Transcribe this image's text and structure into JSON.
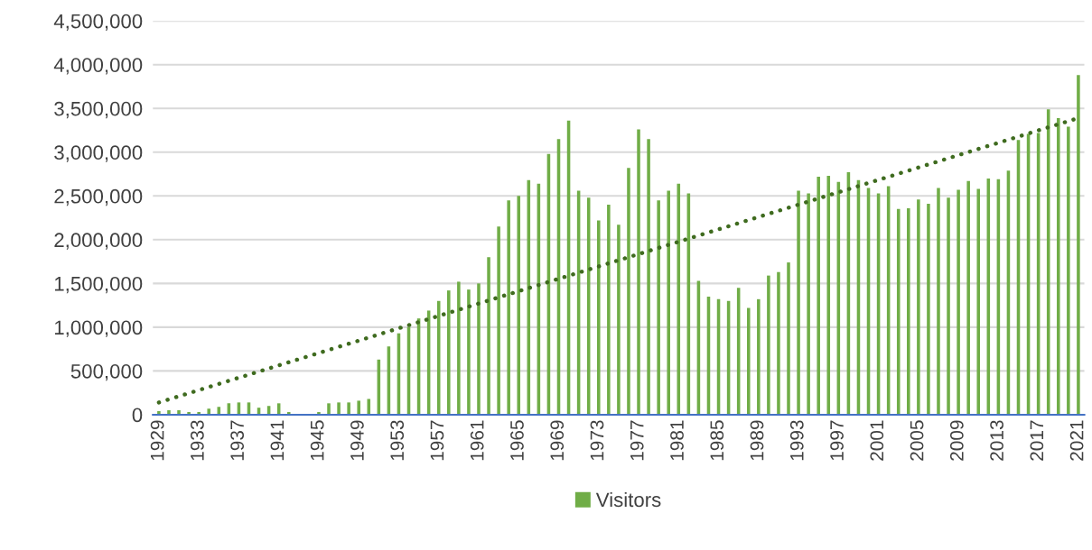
{
  "chart_data": {
    "type": "bar",
    "categories": [
      "1929",
      null,
      null,
      null,
      "1933",
      null,
      null,
      null,
      "1937",
      null,
      null,
      null,
      "1941",
      null,
      null,
      null,
      "1945",
      null,
      null,
      null,
      "1949",
      null,
      null,
      null,
      "1953",
      null,
      null,
      null,
      "1957",
      null,
      null,
      null,
      "1961",
      null,
      null,
      null,
      "1965",
      null,
      null,
      null,
      "1969",
      null,
      null,
      null,
      "1973",
      null,
      null,
      null,
      "1977",
      null,
      null,
      null,
      "1981",
      null,
      null,
      null,
      "1985",
      null,
      null,
      null,
      "1989",
      null,
      null,
      null,
      "1993",
      null,
      null,
      null,
      "1997",
      null,
      null,
      null,
      "2001",
      null,
      null,
      null,
      "2005",
      null,
      null,
      null,
      "2009",
      null,
      null,
      null,
      "2013",
      null,
      null,
      null,
      "2017",
      null,
      null,
      null,
      "2021"
    ],
    "series": [
      {
        "name": "Visitors",
        "color": "#70ad47",
        "values": [
          40000,
          50000,
          50000,
          30000,
          30000,
          70000,
          90000,
          130000,
          140000,
          140000,
          80000,
          100000,
          130000,
          30000,
          0,
          0,
          30000,
          130000,
          140000,
          140000,
          160000,
          180000,
          630000,
          780000,
          930000,
          1000000,
          1100000,
          1190000,
          1300000,
          1420000,
          1520000,
          1430000,
          1500000,
          1800000,
          2150000,
          2450000,
          2500000,
          2680000,
          2640000,
          2980000,
          3150000,
          3360000,
          2560000,
          2480000,
          2220000,
          2400000,
          2170000,
          2820000,
          3260000,
          3150000,
          2450000,
          2560000,
          2640000,
          2530000,
          1530000,
          1350000,
          1320000,
          1300000,
          1450000,
          1220000,
          1320000,
          1590000,
          1630000,
          1740000,
          2560000,
          2530000,
          2720000,
          2730000,
          2660000,
          2770000,
          2680000,
          2590000,
          2530000,
          2610000,
          2350000,
          2360000,
          2460000,
          2410000,
          2590000,
          2480000,
          2570000,
          2670000,
          2580000,
          2700000,
          2690000,
          2790000,
          3140000,
          3210000,
          3220000,
          3490000,
          3390000,
          3290000,
          3880000
        ]
      },
      {
        "type": "line",
        "values": [
          140000,
          null,
          null,
          null,
          null,
          null,
          null,
          null,
          null,
          null,
          null,
          null,
          null,
          null,
          null,
          null,
          null,
          null,
          null,
          null,
          null,
          null,
          null,
          null,
          null,
          null,
          null,
          null,
          null,
          null,
          null,
          null,
          null,
          null,
          null,
          null,
          null,
          null,
          null,
          null,
          null,
          null,
          null,
          null,
          null,
          null,
          null,
          null,
          null,
          null,
          null,
          null,
          null,
          null,
          null,
          null,
          null,
          null,
          null,
          null,
          null,
          null,
          null,
          null,
          null,
          null,
          null,
          null,
          null,
          null,
          null,
          null,
          null,
          null,
          null,
          null,
          null,
          null,
          null,
          null,
          null,
          null,
          null,
          null,
          null,
          null,
          null,
          null,
          null,
          null,
          null,
          null,
          3390000
        ],
        "color": "#3f6b1f",
        "line_style": "dotted"
      }
    ],
    "ylim": [
      0,
      4500000
    ],
    "yticks": [
      {
        "value": 0,
        "label": "0"
      },
      {
        "value": 500000,
        "label": "500,000"
      },
      {
        "value": 1000000,
        "label": "1,000,000"
      },
      {
        "value": 1500000,
        "label": "1,500,000"
      },
      {
        "value": 2000000,
        "label": "2,000,000"
      },
      {
        "value": 2500000,
        "label": "2,500,000"
      },
      {
        "value": 3000000,
        "label": "3,000,000"
      },
      {
        "value": 3500000,
        "label": "3,500,000"
      },
      {
        "value": 4000000,
        "label": "4,000,000"
      },
      {
        "value": 4500000,
        "label": "4,500,000"
      }
    ],
    "grid": "y",
    "legend": "bottom"
  }
}
